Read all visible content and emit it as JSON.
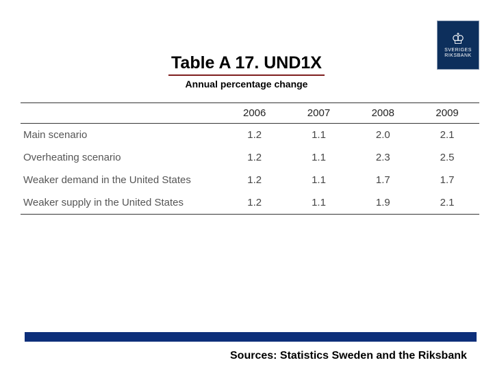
{
  "logo": {
    "line1": "SVERIGES",
    "line2": "RIKSBANK",
    "bg_color": "#0d2f5c"
  },
  "title": "Table A 17. UND1X",
  "subtitle": "Annual percentage change",
  "table": {
    "columns": [
      "",
      "2006",
      "2007",
      "2008",
      "2009"
    ],
    "rows": [
      [
        "Main scenario",
        "1.2",
        "1.1",
        "2.0",
        "2.1"
      ],
      [
        "Overheating scenario",
        "1.2",
        "1.1",
        "2.3",
        "2.5"
      ],
      [
        "Weaker demand in the United States",
        "1.2",
        "1.1",
        "1.7",
        "1.7"
      ],
      [
        "Weaker supply in the United States",
        "1.2",
        "1.1",
        "1.9",
        "2.1"
      ]
    ],
    "border_color": "#333333",
    "text_color": "#444444",
    "header_fontsize": 15,
    "cell_fontsize": 15
  },
  "bottom_bar_color": "#0d2f7a",
  "sources": "Sources: Statistics Sweden and the Riksbank"
}
